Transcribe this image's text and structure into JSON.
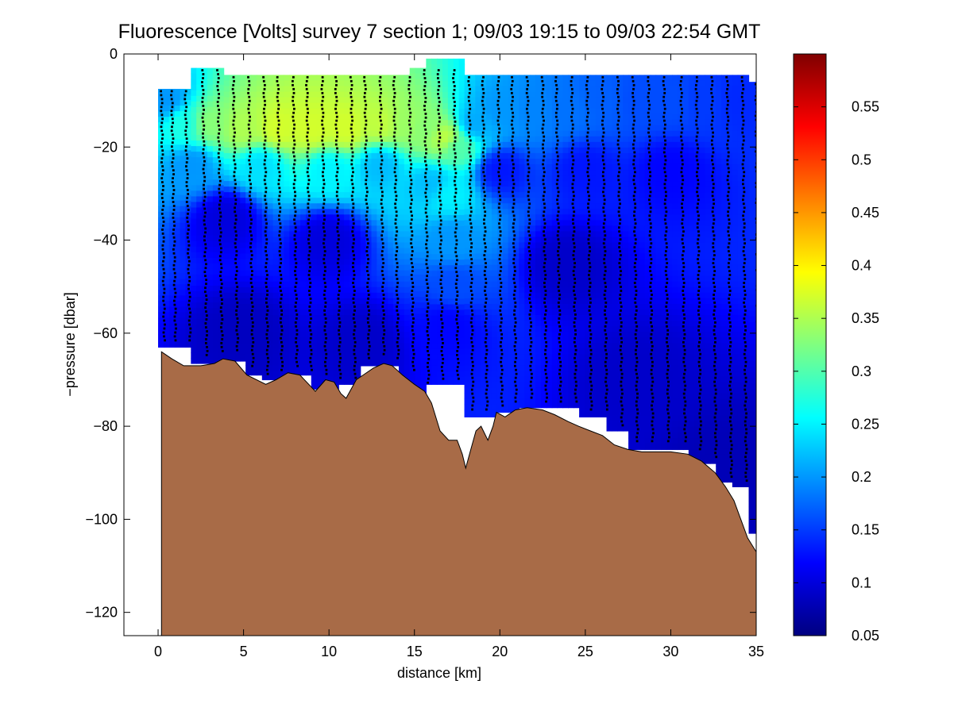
{
  "chart_data": {
    "type": "heatmap",
    "title": "Fluorescence [Volts] survey 7 section 1; 09/03 19:15 to 09/03 22:54 GMT",
    "xlabel": "distance [km]",
    "ylabel": "−pressure [dbar]",
    "xlim": [
      -2,
      35
    ],
    "ylim": [
      -125,
      0
    ],
    "xticks": [
      0,
      5,
      10,
      15,
      20,
      25,
      30,
      35
    ],
    "xtick_labels": [
      "0",
      "5",
      "10",
      "15",
      "20",
      "25",
      "30",
      "35"
    ],
    "yticks": [
      0,
      -20,
      -40,
      -60,
      -80,
      -100,
      -120
    ],
    "ytick_labels": [
      "0",
      "−20",
      "−40",
      "−60",
      "−80",
      "−100",
      "−120"
    ],
    "colorbar": {
      "range": [
        0.05,
        0.6
      ],
      "colormap": "jet",
      "ticks": [
        0.05,
        0.1,
        0.15,
        0.2,
        0.25,
        0.3,
        0.35,
        0.4,
        0.45,
        0.5,
        0.55
      ],
      "tick_labels": [
        "0.05",
        "0.1",
        "0.15",
        "0.2",
        "0.25",
        "0.3",
        "0.35",
        "0.4",
        "0.45",
        "0.5",
        "0.55"
      ]
    },
    "bottom_fill_color": "#a86b47",
    "sample_marker_color": "#000000",
    "grid": false,
    "profiles_km": [
      0.2,
      0.8,
      1.6,
      2.6,
      3.5,
      4.4,
      5.3,
      6.2,
      7.0,
      7.9,
      8.7,
      9.6,
      10.4,
      11.3,
      12.1,
      13.0,
      13.8,
      14.7,
      15.6,
      16.4,
      17.3,
      18.2,
      19.0,
      19.9,
      20.7,
      21.6,
      22.5,
      23.3,
      24.2,
      25.1,
      26.0,
      26.9,
      27.8,
      28.7,
      29.6,
      30.6,
      31.5,
      32.4,
      33.3,
      34.2,
      35.0
    ],
    "field_regions": [
      {
        "x": 0.0,
        "bottom": -63,
        "top": -7.5
      },
      {
        "x": 1.9,
        "bottom": -66.5,
        "top": -3
      },
      {
        "x": 3.8,
        "bottom": -66,
        "top": -4.5
      },
      {
        "x": 5.0,
        "bottom": -69,
        "top": -4.5
      },
      {
        "x": 6.2,
        "bottom": -70,
        "top": -4.5
      },
      {
        "x": 8.0,
        "bottom": -69,
        "top": -4.5
      },
      {
        "x": 9.0,
        "bottom": -72,
        "top": -4.5
      },
      {
        "x": 10.5,
        "bottom": -71,
        "top": -4.5
      },
      {
        "x": 12.0,
        "bottom": -67,
        "top": -4.5
      },
      {
        "x": 14.0,
        "bottom": -72,
        "top": -4.5
      },
      {
        "x": 14.8,
        "bottom": -73.5,
        "top": -3
      },
      {
        "x": 15.8,
        "bottom": -71,
        "top": -1
      },
      {
        "x": 16.7,
        "bottom": -71,
        "top": -1
      },
      {
        "x": 17.8,
        "bottom": -78,
        "top": -4.5
      },
      {
        "x": 18.9,
        "bottom": -78,
        "top": -4.5
      },
      {
        "x": 20.0,
        "bottom": -77,
        "top": -4.5
      },
      {
        "x": 21.0,
        "bottom": -76,
        "top": -4.5
      },
      {
        "x": 22.5,
        "bottom": -76,
        "top": -4.5
      },
      {
        "x": 24.5,
        "bottom": -78,
        "top": -4.5
      },
      {
        "x": 26.2,
        "bottom": -81,
        "top": -4.5
      },
      {
        "x": 27.5,
        "bottom": -85,
        "top": -4.5
      },
      {
        "x": 29.0,
        "bottom": -85,
        "top": -4.5
      },
      {
        "x": 31.0,
        "bottom": -88,
        "top": -4.5
      },
      {
        "x": 32.5,
        "bottom": -92,
        "top": -4.5
      },
      {
        "x": 33.6,
        "bottom": -93,
        "top": -4.5
      },
      {
        "x": 34.5,
        "bottom": -103,
        "top": -6
      },
      {
        "x": 35.0,
        "bottom": -103,
        "top": -6
      }
    ],
    "bathymetry": [
      {
        "x": 0.2,
        "y": -64
      },
      {
        "x": 0.8,
        "y": -65.5
      },
      {
        "x": 1.5,
        "y": -67
      },
      {
        "x": 2.5,
        "y": -67
      },
      {
        "x": 3.3,
        "y": -66.5
      },
      {
        "x": 3.8,
        "y": -65.5
      },
      {
        "x": 4.5,
        "y": -66
      },
      {
        "x": 5.2,
        "y": -69
      },
      {
        "x": 6.3,
        "y": -71
      },
      {
        "x": 6.9,
        "y": -70
      },
      {
        "x": 7.6,
        "y": -68.5
      },
      {
        "x": 8.3,
        "y": -69
      },
      {
        "x": 9.2,
        "y": -72.5
      },
      {
        "x": 9.8,
        "y": -70
      },
      {
        "x": 10.3,
        "y": -70.5
      },
      {
        "x": 10.7,
        "y": -73
      },
      {
        "x": 11.0,
        "y": -74
      },
      {
        "x": 11.6,
        "y": -70
      },
      {
        "x": 12.0,
        "y": -69
      },
      {
        "x": 12.6,
        "y": -67.5
      },
      {
        "x": 13.2,
        "y": -66.5
      },
      {
        "x": 13.7,
        "y": -67
      },
      {
        "x": 14.3,
        "y": -69
      },
      {
        "x": 15.0,
        "y": -71
      },
      {
        "x": 15.6,
        "y": -72.5
      },
      {
        "x": 16.0,
        "y": -75
      },
      {
        "x": 16.5,
        "y": -81
      },
      {
        "x": 17.0,
        "y": -83
      },
      {
        "x": 17.5,
        "y": -83
      },
      {
        "x": 17.8,
        "y": -86
      },
      {
        "x": 18.0,
        "y": -89
      },
      {
        "x": 18.3,
        "y": -85
      },
      {
        "x": 18.6,
        "y": -81
      },
      {
        "x": 18.9,
        "y": -80
      },
      {
        "x": 19.3,
        "y": -83
      },
      {
        "x": 19.6,
        "y": -80
      },
      {
        "x": 19.8,
        "y": -77
      },
      {
        "x": 20.3,
        "y": -78
      },
      {
        "x": 20.9,
        "y": -76.5
      },
      {
        "x": 21.6,
        "y": -76
      },
      {
        "x": 22.5,
        "y": -76.5
      },
      {
        "x": 23.2,
        "y": -77.5
      },
      {
        "x": 24.0,
        "y": -79
      },
      {
        "x": 24.6,
        "y": -80
      },
      {
        "x": 25.3,
        "y": -81
      },
      {
        "x": 26.0,
        "y": -82
      },
      {
        "x": 26.7,
        "y": -84
      },
      {
        "x": 27.5,
        "y": -85
      },
      {
        "x": 28.3,
        "y": -85.5
      },
      {
        "x": 29.0,
        "y": -85.5
      },
      {
        "x": 30.0,
        "y": -85.5
      },
      {
        "x": 31.0,
        "y": -86
      },
      {
        "x": 31.8,
        "y": -87.5
      },
      {
        "x": 32.6,
        "y": -90
      },
      {
        "x": 33.2,
        "y": -93
      },
      {
        "x": 33.7,
        "y": -96
      },
      {
        "x": 34.1,
        "y": -100
      },
      {
        "x": 34.5,
        "y": -104
      },
      {
        "x": 35.0,
        "y": -107
      }
    ],
    "field_anchors": [
      {
        "x": 0.5,
        "y": -10,
        "v": 0.2
      },
      {
        "x": 1.5,
        "y": -15,
        "v": 0.27
      },
      {
        "x": 3.0,
        "y": -15,
        "v": 0.33
      },
      {
        "x": 5.0,
        "y": -16,
        "v": 0.35
      },
      {
        "x": 7.0,
        "y": -16,
        "v": 0.37
      },
      {
        "x": 9.0,
        "y": -16,
        "v": 0.37
      },
      {
        "x": 11.0,
        "y": -16,
        "v": 0.37
      },
      {
        "x": 13.0,
        "y": -15,
        "v": 0.36
      },
      {
        "x": 14.5,
        "y": -15,
        "v": 0.34
      },
      {
        "x": 15.7,
        "y": -16,
        "v": 0.33
      },
      {
        "x": 16.8,
        "y": -18,
        "v": 0.36
      },
      {
        "x": 17.5,
        "y": -20,
        "v": 0.3
      },
      {
        "x": 18.5,
        "y": -15,
        "v": 0.21
      },
      {
        "x": 20.0,
        "y": -12,
        "v": 0.2
      },
      {
        "x": 22.0,
        "y": -12,
        "v": 0.19
      },
      {
        "x": 24.0,
        "y": -12,
        "v": 0.18
      },
      {
        "x": 26.0,
        "y": -10,
        "v": 0.17
      },
      {
        "x": 28.0,
        "y": -10,
        "v": 0.16
      },
      {
        "x": 30.0,
        "y": -10,
        "v": 0.16
      },
      {
        "x": 32.0,
        "y": -10,
        "v": 0.15
      },
      {
        "x": 34.0,
        "y": -10,
        "v": 0.14
      },
      {
        "x": 2.0,
        "y": -24,
        "v": 0.2
      },
      {
        "x": 6.0,
        "y": -24,
        "v": 0.24
      },
      {
        "x": 10.0,
        "y": -25,
        "v": 0.25
      },
      {
        "x": 13.0,
        "y": -24,
        "v": 0.22
      },
      {
        "x": 16.0,
        "y": -28,
        "v": 0.22
      },
      {
        "x": 17.0,
        "y": -30,
        "v": 0.25
      },
      {
        "x": 17.2,
        "y": -40,
        "v": 0.2
      },
      {
        "x": 17.3,
        "y": -50,
        "v": 0.16
      },
      {
        "x": 17.0,
        "y": -58,
        "v": 0.12
      },
      {
        "x": 20.0,
        "y": -25,
        "v": 0.13
      },
      {
        "x": 25.0,
        "y": -25,
        "v": 0.13
      },
      {
        "x": 30.0,
        "y": -25,
        "v": 0.12
      },
      {
        "x": 4.0,
        "y": -35,
        "v": 0.1
      },
      {
        "x": 10.0,
        "y": -40,
        "v": 0.1
      },
      {
        "x": 24.0,
        "y": -45,
        "v": 0.09
      },
      {
        "x": 5.0,
        "y": -60,
        "v": 0.085
      },
      {
        "x": 12.0,
        "y": -62,
        "v": 0.09
      },
      {
        "x": 28.0,
        "y": -70,
        "v": 0.09
      },
      {
        "x": 33.0,
        "y": -90,
        "v": 0.08
      }
    ]
  }
}
